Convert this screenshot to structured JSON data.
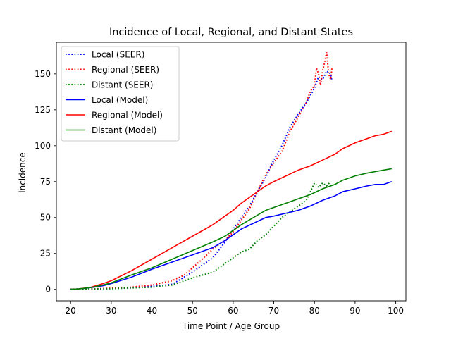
{
  "chart_data": {
    "type": "line",
    "title": "Incidence of Local, Regional, and Distant States",
    "xlabel": "Time Point / Age Group",
    "ylabel": "incidence",
    "xlim": [
      16.5,
      102.5
    ],
    "ylim": [
      -8,
      172
    ],
    "xticks": [
      20,
      30,
      40,
      50,
      60,
      70,
      80,
      90,
      100
    ],
    "yticks": [
      0,
      25,
      50,
      75,
      100,
      125,
      150
    ],
    "grid": false,
    "legend_position": "top-left",
    "series": [
      {
        "name": "Local (SEER)",
        "color": "#0000ff",
        "style": "dotted",
        "points": [
          [
            20,
            0.1
          ],
          [
            25,
            0.2
          ],
          [
            30,
            0.5
          ],
          [
            35,
            1
          ],
          [
            40,
            2
          ],
          [
            45,
            3.5
          ],
          [
            50,
            12
          ],
          [
            55,
            22
          ],
          [
            58,
            33
          ],
          [
            60,
            42
          ],
          [
            62,
            50
          ],
          [
            64,
            58
          ],
          [
            66,
            68
          ],
          [
            68,
            78
          ],
          [
            70,
            90
          ],
          [
            72,
            100
          ],
          [
            74,
            113
          ],
          [
            76,
            122
          ],
          [
            78,
            130
          ],
          [
            79,
            135
          ],
          [
            80,
            140
          ],
          [
            81,
            148
          ],
          [
            82,
            146
          ],
          [
            83,
            152
          ],
          [
            84,
            150
          ],
          [
            84.3,
            145
          ]
        ]
      },
      {
        "name": "Regional (SEER)",
        "color": "#ff0000",
        "style": "dotted",
        "points": [
          [
            20,
            0.1
          ],
          [
            25,
            0.3
          ],
          [
            30,
            0.8
          ],
          [
            35,
            1.5
          ],
          [
            40,
            3
          ],
          [
            45,
            6
          ],
          [
            48,
            10
          ],
          [
            50,
            15
          ],
          [
            52,
            20
          ],
          [
            55,
            28
          ],
          [
            58,
            34
          ],
          [
            60,
            40
          ],
          [
            62,
            48
          ],
          [
            64,
            56
          ],
          [
            66,
            68
          ],
          [
            68,
            80
          ],
          [
            70,
            88
          ],
          [
            72,
            96
          ],
          [
            74,
            110
          ],
          [
            76,
            120
          ],
          [
            78,
            130
          ],
          [
            79,
            138
          ],
          [
            80,
            142
          ],
          [
            80.5,
            154
          ],
          [
            81,
            150
          ],
          [
            81.5,
            142
          ],
          [
            82,
            152
          ],
          [
            82.5,
            158
          ],
          [
            83,
            165
          ],
          [
            83.5,
            150
          ],
          [
            84,
            146
          ],
          [
            84.3,
            154
          ]
        ]
      },
      {
        "name": "Distant (SEER)",
        "color": "#008000",
        "style": "dotted",
        "points": [
          [
            20,
            0.1
          ],
          [
            25,
            0.2
          ],
          [
            30,
            0.5
          ],
          [
            35,
            1
          ],
          [
            40,
            1.5
          ],
          [
            45,
            3
          ],
          [
            50,
            8
          ],
          [
            55,
            12
          ],
          [
            60,
            22
          ],
          [
            62,
            26
          ],
          [
            64,
            28
          ],
          [
            66,
            34
          ],
          [
            68,
            38
          ],
          [
            70,
            44
          ],
          [
            72,
            50
          ],
          [
            74,
            54
          ],
          [
            76,
            58
          ],
          [
            78,
            62
          ],
          [
            79,
            68
          ],
          [
            80,
            74
          ],
          [
            81,
            71
          ],
          [
            82,
            74
          ],
          [
            83,
            72
          ],
          [
            84,
            75
          ]
        ]
      },
      {
        "name": "Local (Model)",
        "color": "#0000ff",
        "style": "solid",
        "points": [
          [
            20,
            0
          ],
          [
            22,
            0.3
          ],
          [
            25,
            1.2
          ],
          [
            28,
            2.5
          ],
          [
            30,
            4
          ],
          [
            35,
            8.5
          ],
          [
            40,
            14
          ],
          [
            45,
            19
          ],
          [
            50,
            24
          ],
          [
            55,
            29
          ],
          [
            58,
            34
          ],
          [
            60,
            38
          ],
          [
            62,
            42
          ],
          [
            65,
            46
          ],
          [
            68,
            50
          ],
          [
            70,
            51
          ],
          [
            73,
            53
          ],
          [
            76,
            55
          ],
          [
            79,
            58
          ],
          [
            82,
            62
          ],
          [
            85,
            65
          ],
          [
            87,
            68
          ],
          [
            90,
            70
          ],
          [
            93,
            72
          ],
          [
            95,
            73
          ],
          [
            97,
            73
          ],
          [
            99,
            75
          ]
        ]
      },
      {
        "name": "Regional (Model)",
        "color": "#ff0000",
        "style": "solid",
        "points": [
          [
            20,
            0
          ],
          [
            22,
            0.3
          ],
          [
            25,
            1.5
          ],
          [
            28,
            4
          ],
          [
            30,
            6
          ],
          [
            35,
            13
          ],
          [
            40,
            21
          ],
          [
            45,
            29
          ],
          [
            50,
            37
          ],
          [
            55,
            45
          ],
          [
            58,
            51
          ],
          [
            60,
            55
          ],
          [
            62,
            60
          ],
          [
            65,
            66
          ],
          [
            68,
            72
          ],
          [
            70,
            75
          ],
          [
            73,
            79
          ],
          [
            76,
            83
          ],
          [
            79,
            86
          ],
          [
            82,
            90
          ],
          [
            85,
            94
          ],
          [
            87,
            98
          ],
          [
            90,
            102
          ],
          [
            93,
            105
          ],
          [
            95,
            107
          ],
          [
            97,
            108
          ],
          [
            99,
            110
          ]
        ]
      },
      {
        "name": "Distant (Model)",
        "color": "#008000",
        "style": "solid",
        "points": [
          [
            20,
            0
          ],
          [
            22,
            0.3
          ],
          [
            25,
            1.3
          ],
          [
            28,
            3
          ],
          [
            30,
            4.5
          ],
          [
            35,
            10
          ],
          [
            40,
            15
          ],
          [
            45,
            21
          ],
          [
            50,
            27
          ],
          [
            55,
            33
          ],
          [
            58,
            37
          ],
          [
            60,
            41
          ],
          [
            62,
            45
          ],
          [
            65,
            50
          ],
          [
            68,
            55
          ],
          [
            70,
            57
          ],
          [
            73,
            60
          ],
          [
            76,
            63
          ],
          [
            79,
            66
          ],
          [
            82,
            70
          ],
          [
            85,
            73
          ],
          [
            87,
            76
          ],
          [
            90,
            79
          ],
          [
            93,
            81
          ],
          [
            95,
            82
          ],
          [
            97,
            83
          ],
          [
            99,
            84
          ]
        ]
      }
    ]
  }
}
